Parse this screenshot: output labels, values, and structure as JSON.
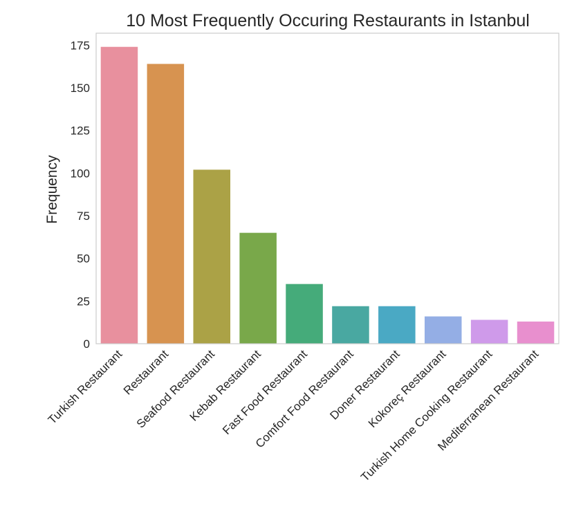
{
  "chart_data": {
    "type": "bar",
    "title": "10 Most Frequently Occuring Restaurants in Istanbul",
    "xlabel": "",
    "ylabel": "Frequency",
    "categories": [
      "Turkish Restaurant",
      "Restaurant",
      "Seafood Restaurant",
      "Kebab Restaurant",
      "Fast Food Restaurant",
      "Comfort Food Restaurant",
      "Doner Restaurant",
      "Kokoreç Restaurant",
      "Turkish Home Cooking Restaurant",
      "Mediterranean Restaurant"
    ],
    "values": [
      174,
      164,
      102,
      65,
      35,
      22,
      22,
      16,
      14,
      13
    ],
    "colors": [
      "#e8909e",
      "#d79350",
      "#aba246",
      "#79a84a",
      "#45ab7a",
      "#49a8a1",
      "#4aa9c4",
      "#94aee5",
      "#cf9aea",
      "#e88fce"
    ],
    "ylim": [
      0,
      182
    ],
    "yticks": [
      0,
      25,
      50,
      75,
      100,
      125,
      150,
      175
    ],
    "grid": false,
    "legend": "none"
  }
}
